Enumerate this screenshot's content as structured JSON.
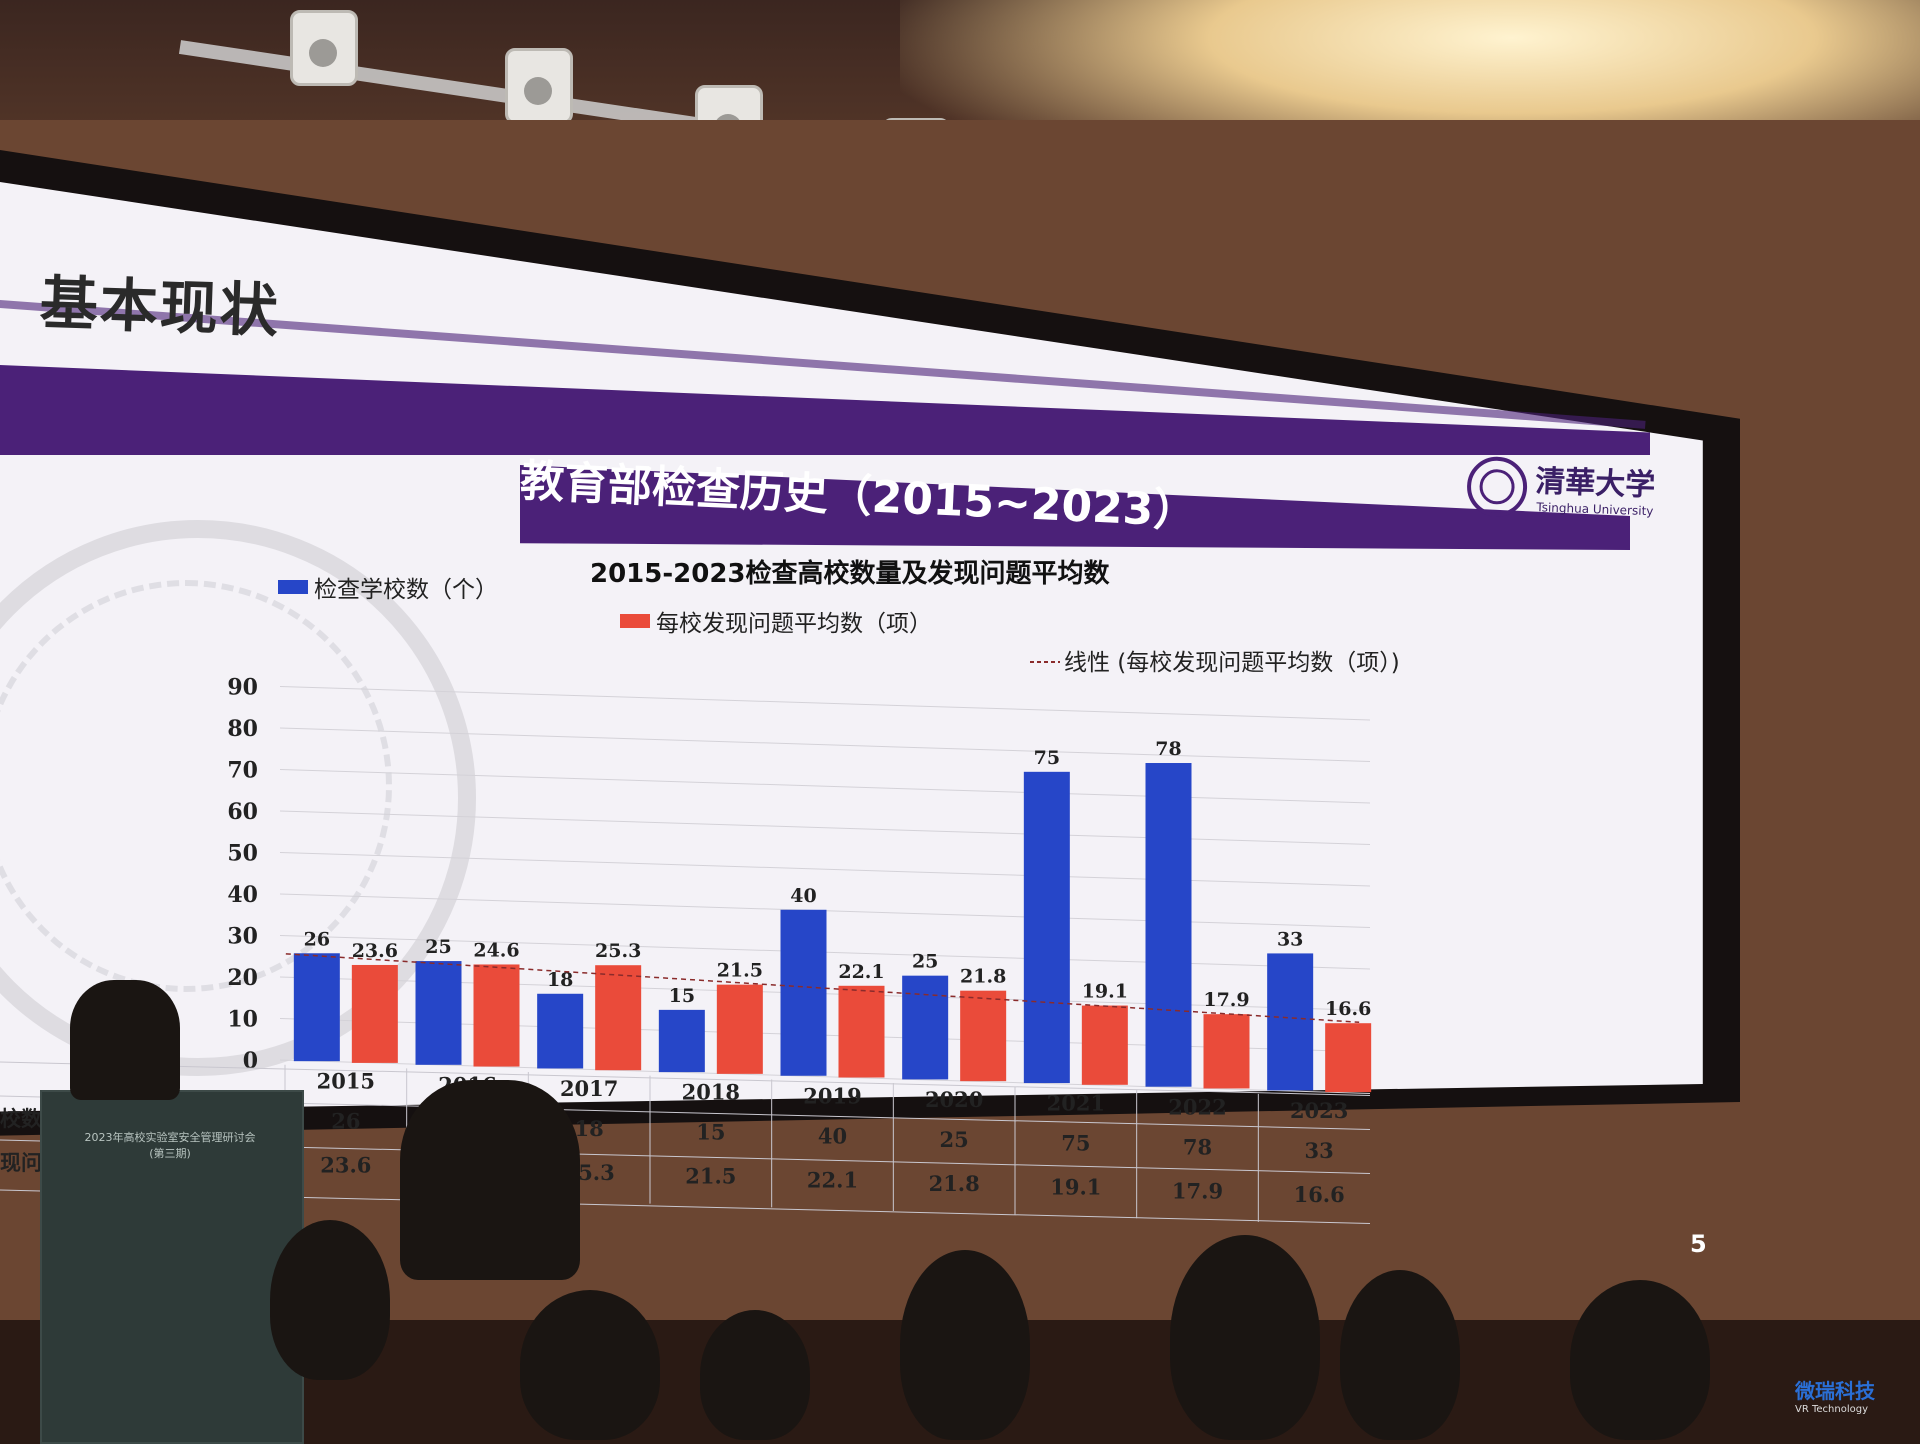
{
  "slide": {
    "title": "基本现状",
    "subtitle": "教育部检查历史（2015~2023）",
    "logo_text": "清華大学",
    "logo_sub": "Tsinghua University",
    "page_number": "5",
    "seal_text": "UNIVERSITY"
  },
  "podium": {
    "line1": "2023年高校实验室安全管理研讨会",
    "line2": "(第三期)"
  },
  "watermark": {
    "name": "微瑞科技",
    "sub": "VR Technology"
  },
  "colors": {
    "bar_schools": "#2646c8",
    "bar_problems": "#ea4b3a",
    "banner": "#4b2178",
    "trendline": "#8a2b2b"
  },
  "chart_data": {
    "type": "bar",
    "title": "2015-2023检查高校数量及发现问题平均数",
    "categories": [
      "2015",
      "2016",
      "2017",
      "2018",
      "2019",
      "2020",
      "2021",
      "2022",
      "2023"
    ],
    "series": [
      {
        "name": "检查学校数（个）",
        "values": [
          26,
          25,
          18,
          15,
          40,
          25,
          75,
          78,
          33
        ]
      },
      {
        "name": "每校发现问题平均数（项）",
        "values": [
          23.6,
          24.6,
          25.3,
          21.5,
          22.1,
          21.8,
          19.1,
          17.9,
          16.6
        ]
      }
    ],
    "trendline": {
      "name": "线性 (每校发现问题平均数（项）)",
      "of_series": 1
    },
    "yticks": [
      "0",
      "10",
      "20",
      "30",
      "40",
      "50",
      "60",
      "70",
      "80",
      "90"
    ],
    "ylim": [
      0,
      90
    ],
    "table_row_labels": [
      "校数",
      "现问"
    ],
    "legend_position": "top"
  }
}
